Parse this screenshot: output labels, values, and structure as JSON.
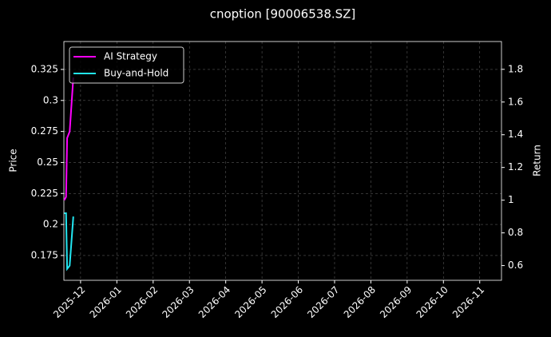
{
  "chart_data": {
    "type": "line",
    "title": "cnoption [90006538.SZ]",
    "y_label": "Price",
    "y2_label": "Return",
    "x": [
      -0.45,
      -0.4,
      -0.37,
      -0.3,
      -0.2
    ],
    "xlim": [
      -0.46,
      11.6
    ],
    "xticks": [
      {
        "value": 0,
        "label": "2025-12"
      },
      {
        "value": 1,
        "label": "2026-01"
      },
      {
        "value": 2,
        "label": "2026-02"
      },
      {
        "value": 3,
        "label": "2026-03"
      },
      {
        "value": 4,
        "label": "2026-04"
      },
      {
        "value": 5,
        "label": "2026-05"
      },
      {
        "value": 6,
        "label": "2026-06"
      },
      {
        "value": 7,
        "label": "2026-07"
      },
      {
        "value": 8,
        "label": "2026-08"
      },
      {
        "value": 9,
        "label": "2026-09"
      },
      {
        "value": 10,
        "label": "2026-10"
      },
      {
        "value": 11,
        "label": "2026-11"
      }
    ],
    "ylim": [
      0.155,
      0.3475
    ],
    "yticks": [
      0.175,
      0.2,
      0.225,
      0.25,
      0.275,
      0.3,
      0.325
    ],
    "y2lim": [
      0.51,
      1.97
    ],
    "y2ticks": [
      0.6,
      0.8,
      1.0,
      1.2,
      1.4,
      1.6,
      1.8
    ],
    "grid": true,
    "legend": "upper left",
    "series": [
      {
        "name": "AI Strategy",
        "color": "#ff00ff",
        "axis": "y2",
        "values": [
          1.0,
          1.02,
          1.38,
          1.42,
          1.75
        ]
      },
      {
        "name": "Buy-and-Hold",
        "color": "#22e5f0",
        "axis": "y2",
        "values": [
          0.92,
          0.92,
          0.58,
          0.6,
          0.9
        ]
      }
    ]
  }
}
